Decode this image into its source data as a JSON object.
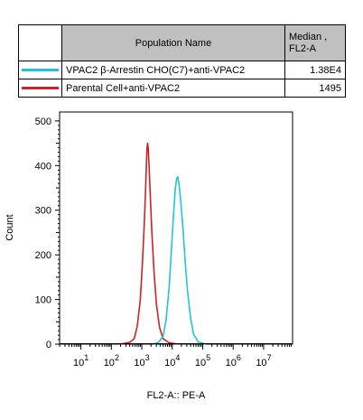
{
  "legend": {
    "header_name": "Population Name",
    "header_median_l1": "Median ,",
    "header_median_l2": "FL2-A",
    "rows": [
      {
        "name": "VPAC2 β-Arrestin CHO(C7)+anti-VPAC2",
        "median": "1.38E4",
        "color": "#22c4dc"
      },
      {
        "name": "Parental Cell+anti-VPAC2",
        "median": "1495",
        "color": "#d2202a"
      }
    ]
  },
  "chart_data": {
    "type": "histogram",
    "xlabel": "FL2-A:: PE-A",
    "ylabel": "Count",
    "x_scale": "log",
    "xlim_log10": [
      0.3,
      7.95
    ],
    "ylim": [
      0,
      520
    ],
    "y_ticks": [
      0,
      100,
      200,
      300,
      400,
      500
    ],
    "x_tick_labels": [
      {
        "base": "10",
        "exp": "1"
      },
      {
        "base": "10",
        "exp": "2"
      },
      {
        "base": "10",
        "exp": "3"
      },
      {
        "base": "10",
        "exp": "4"
      },
      {
        "base": "10",
        "exp": "5"
      },
      {
        "base": "10",
        "exp": "6"
      },
      {
        "base": "10",
        "exp": "7"
      }
    ],
    "series": [
      {
        "name": "Parental Cell+anti-VPAC2",
        "color": "#d2202a",
        "points": [
          [
            2.3,
            0
          ],
          [
            2.6,
            4
          ],
          [
            2.75,
            12
          ],
          [
            2.85,
            40
          ],
          [
            2.95,
            100
          ],
          [
            3.02,
            180
          ],
          [
            3.08,
            270
          ],
          [
            3.12,
            340
          ],
          [
            3.15,
            400
          ],
          [
            3.17,
            440
          ],
          [
            3.19,
            450
          ],
          [
            3.21,
            440
          ],
          [
            3.24,
            395
          ],
          [
            3.28,
            330
          ],
          [
            3.33,
            250
          ],
          [
            3.4,
            165
          ],
          [
            3.48,
            90
          ],
          [
            3.58,
            38
          ],
          [
            3.7,
            12
          ],
          [
            3.9,
            3
          ],
          [
            4.2,
            0
          ]
        ]
      },
      {
        "name": "VPAC2 β-Arrestin CHO(C7)+anti-VPAC2",
        "color": "#22c4dc",
        "points": [
          [
            3.4,
            0
          ],
          [
            3.55,
            4
          ],
          [
            3.7,
            18
          ],
          [
            3.8,
            55
          ],
          [
            3.9,
            130
          ],
          [
            3.98,
            220
          ],
          [
            4.05,
            300
          ],
          [
            4.1,
            350
          ],
          [
            4.15,
            372
          ],
          [
            4.18,
            375
          ],
          [
            4.22,
            360
          ],
          [
            4.28,
            320
          ],
          [
            4.35,
            260
          ],
          [
            4.42,
            190
          ],
          [
            4.5,
            120
          ],
          [
            4.6,
            60
          ],
          [
            4.7,
            22
          ],
          [
            4.85,
            5
          ],
          [
            5.1,
            0
          ]
        ]
      }
    ]
  }
}
